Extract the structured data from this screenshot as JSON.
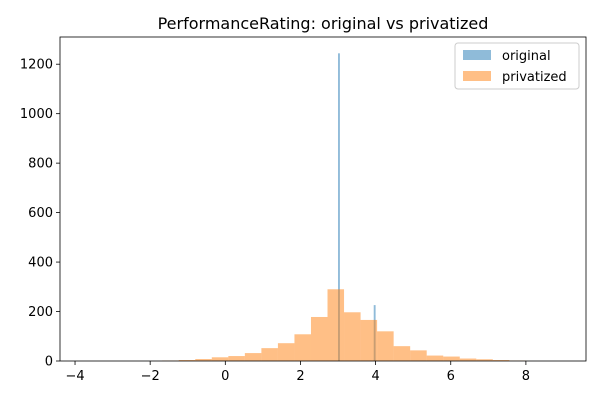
{
  "chart_data": {
    "type": "histogram",
    "title": "PerformanceRating: original vs privatized",
    "xlabel": "",
    "ylabel": "",
    "xlim": [
      -4.4,
      9.6
    ],
    "ylim": [
      0,
      1310
    ],
    "xticks": [
      -4,
      -2,
      0,
      2,
      4,
      6,
      8
    ],
    "yticks": [
      0,
      200,
      400,
      600,
      800,
      1000,
      1200
    ],
    "grid": false,
    "legend_position": "top-right",
    "series": [
      {
        "name": "original",
        "color": "#1f77b4",
        "opacity": 0.5,
        "bin_width": 0.05,
        "bins": [
          {
            "x0": 3.0,
            "count": 1244
          },
          {
            "x0": 3.95,
            "count": 226
          }
        ]
      },
      {
        "name": "privatized",
        "color": "#ff7f0e",
        "opacity": 0.5,
        "bin_width": 0.44,
        "bins": [
          {
            "x0": -1.68,
            "count": 2
          },
          {
            "x0": -1.24,
            "count": 4
          },
          {
            "x0": -0.8,
            "count": 8
          },
          {
            "x0": -0.36,
            "count": 15
          },
          {
            "x0": 0.08,
            "count": 20
          },
          {
            "x0": 0.52,
            "count": 32
          },
          {
            "x0": 0.96,
            "count": 52
          },
          {
            "x0": 1.4,
            "count": 72
          },
          {
            "x0": 1.84,
            "count": 108
          },
          {
            "x0": 2.28,
            "count": 178
          },
          {
            "x0": 2.72,
            "count": 290
          },
          {
            "x0": 3.16,
            "count": 197
          },
          {
            "x0": 3.6,
            "count": 166
          },
          {
            "x0": 4.04,
            "count": 120
          },
          {
            "x0": 4.48,
            "count": 60
          },
          {
            "x0": 4.92,
            "count": 43
          },
          {
            "x0": 5.36,
            "count": 22
          },
          {
            "x0": 5.8,
            "count": 18
          },
          {
            "x0": 6.24,
            "count": 10
          },
          {
            "x0": 6.68,
            "count": 7
          },
          {
            "x0": 7.12,
            "count": 4
          },
          {
            "x0": 7.56,
            "count": 2
          }
        ]
      }
    ]
  }
}
